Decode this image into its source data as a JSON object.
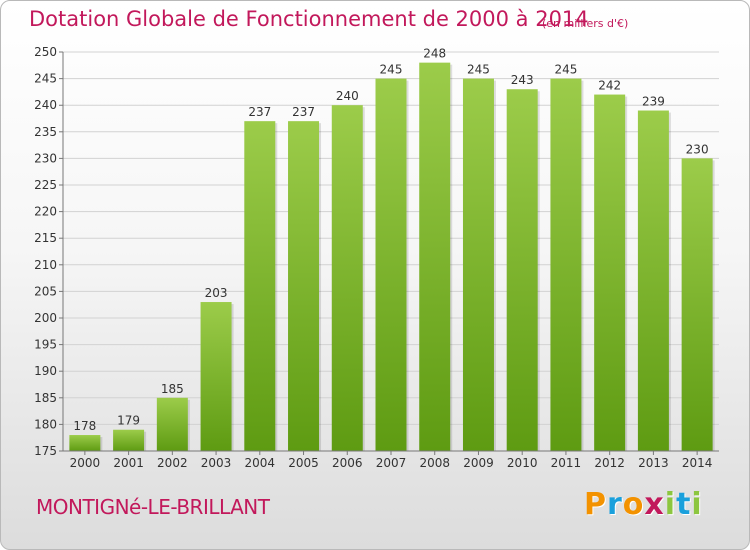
{
  "title": "Dotation Globale de Fonctionnement de 2000 à 2014",
  "subtitle": "(en milliers d'€)",
  "commune": "MONTIGNé-LE-BRILLANT",
  "logo": {
    "letters": [
      "P",
      "r",
      "o",
      "x",
      "i",
      "t",
      "i"
    ],
    "colors": [
      "#f39200",
      "#1aa0dc",
      "#f39200",
      "#c2185b",
      "#8cc63f",
      "#1aa0dc",
      "#8cc63f"
    ]
  },
  "colors": {
    "title": "#c2185b",
    "bar_light": "#9ccc4a",
    "bar_dark": "#5e9b12",
    "axis_text": "#333333"
  },
  "chart_data": {
    "type": "bar",
    "categories": [
      "2000",
      "2001",
      "2002",
      "2003",
      "2004",
      "2005",
      "2006",
      "2007",
      "2008",
      "2009",
      "2010",
      "2011",
      "2012",
      "2013",
      "2014"
    ],
    "values": [
      178,
      179,
      185,
      203,
      237,
      237,
      240,
      245,
      248,
      245,
      243,
      245,
      242,
      239,
      230
    ],
    "ylim": [
      175,
      250
    ],
    "yticks": [
      175,
      180,
      185,
      190,
      195,
      200,
      205,
      210,
      215,
      220,
      225,
      230,
      235,
      240,
      245,
      250
    ],
    "grid": true
  }
}
